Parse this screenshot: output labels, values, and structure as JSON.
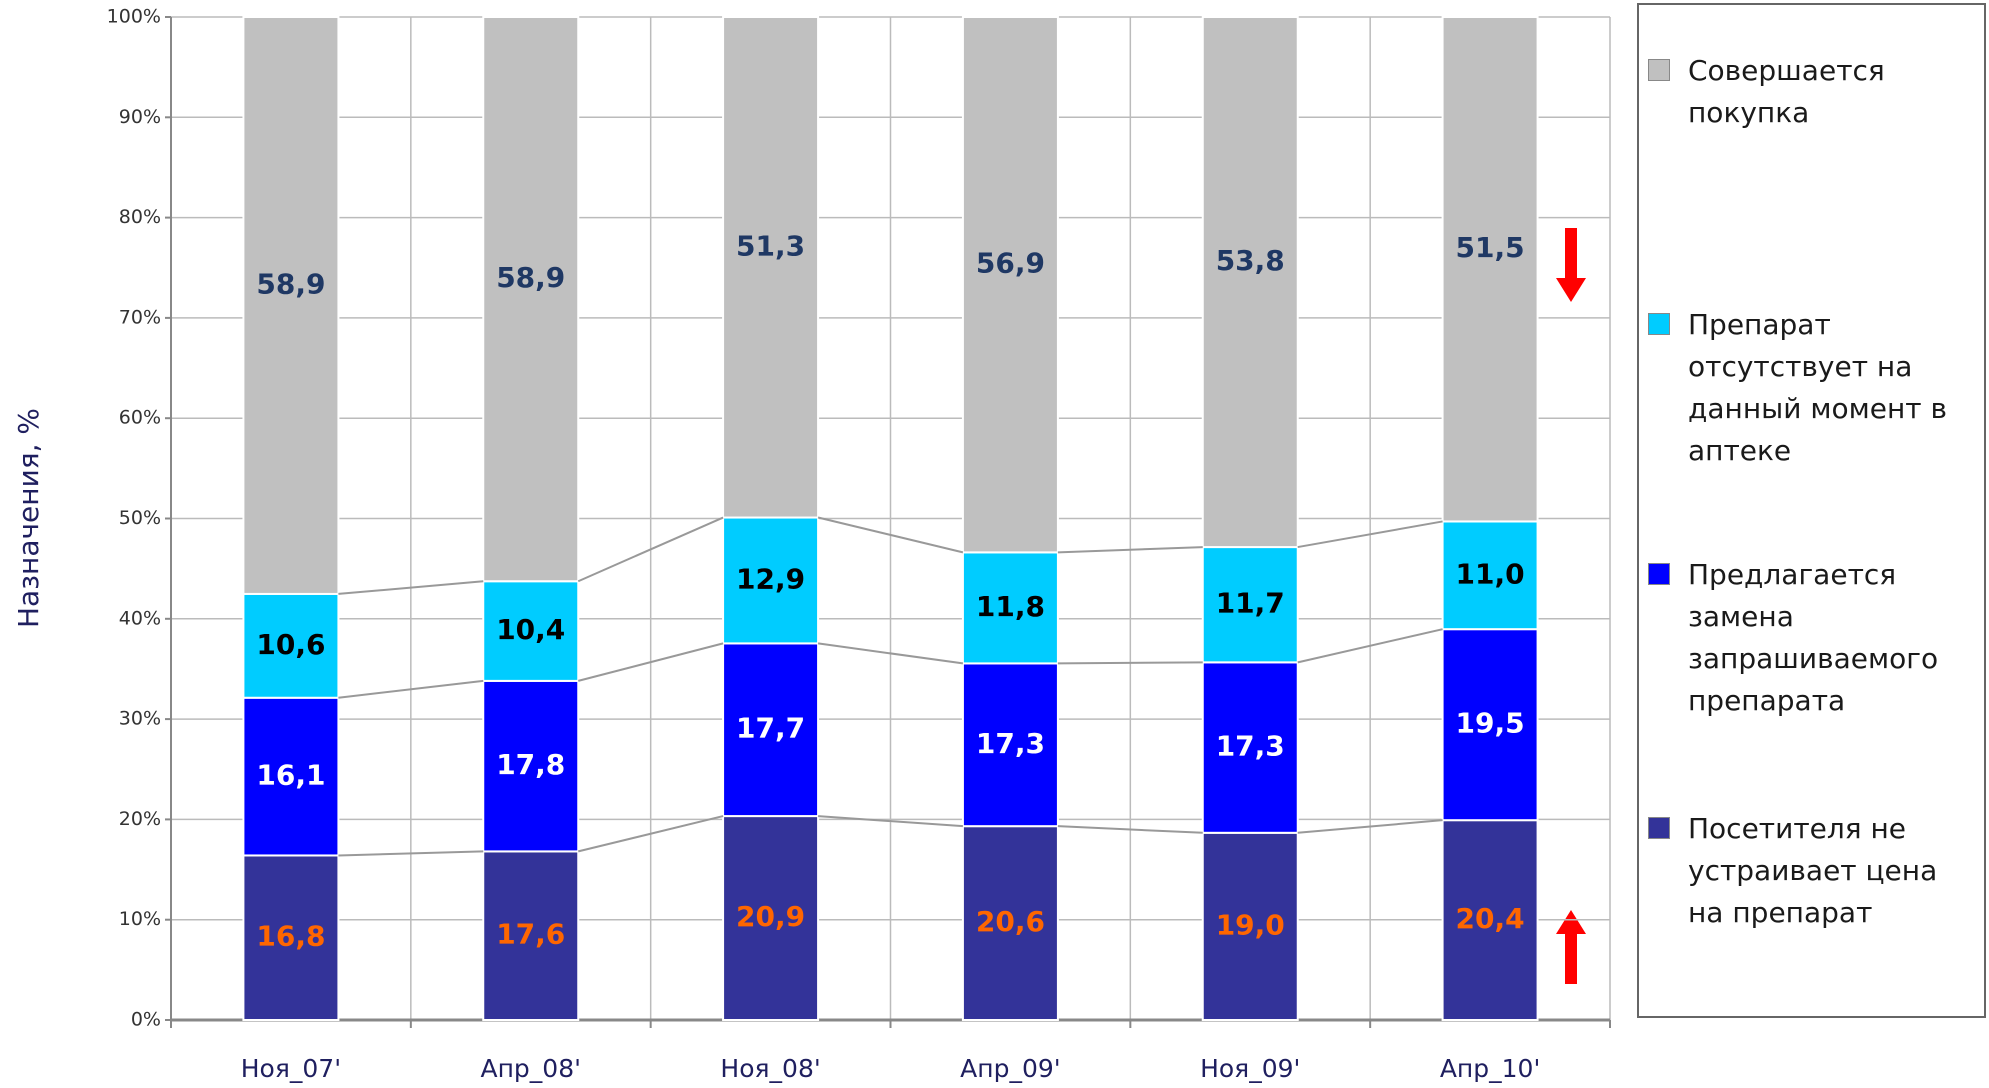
{
  "chart_data": {
    "type": "bar",
    "stack": "percent",
    "y_label": "Назначения, %",
    "categories": [
      "Ноя_07'",
      "Апр_08'",
      "Ноя_08'",
      "Апр_09'",
      "Ноя_09'",
      "Апр_10'"
    ],
    "series": [
      {
        "name": "Посетителя не устраивает цена на препарат",
        "color": "#333399",
        "label_color": "#ff6600",
        "values": [
          16.8,
          17.6,
          20.9,
          20.6,
          19.0,
          20.4
        ],
        "value_labels": [
          "16,8",
          "17,6",
          "20,9",
          "20,6",
          "19,0",
          "20,4"
        ]
      },
      {
        "name": "Предлагается замена запрашиваемого препарата",
        "color": "#0000ff",
        "label_color": "#ffffff",
        "values": [
          16.1,
          17.8,
          17.7,
          17.3,
          17.3,
          19.5
        ],
        "value_labels": [
          "16,1",
          "17,8",
          "17,7",
          "17,3",
          "17,3",
          "19,5"
        ]
      },
      {
        "name": "Препарат отсутствует на данный момент в аптеке",
        "color": "#00ccff",
        "label_color": "#000000",
        "values": [
          10.6,
          10.4,
          12.9,
          11.8,
          11.7,
          11.0
        ],
        "value_labels": [
          "10,6",
          "10,4",
          "12,9",
          "11,8",
          "11,7",
          "11,0"
        ]
      },
      {
        "name": "Совершается покупка",
        "color": "#c0c0c0",
        "label_color": "#1f3864",
        "values": [
          58.9,
          58.9,
          51.3,
          56.9,
          53.8,
          51.5
        ],
        "value_labels": [
          "58,9",
          "58,9",
          "51,3",
          "56,9",
          "53,8",
          "51,5"
        ]
      }
    ],
    "ylim": [
      0,
      100
    ],
    "yticks": [
      {
        "value": 0,
        "label": "0%"
      },
      {
        "value": 10,
        "label": "10%"
      },
      {
        "value": 20,
        "label": "20%"
      },
      {
        "value": 30,
        "label": "30%"
      },
      {
        "value": 40,
        "label": "40%"
      },
      {
        "value": 50,
        "label": "50%"
      },
      {
        "value": 60,
        "label": "60%"
      },
      {
        "value": 70,
        "label": "70%"
      },
      {
        "value": 80,
        "label": "80%"
      },
      {
        "value": 90,
        "label": "90%"
      },
      {
        "value": 100,
        "label": "100%"
      }
    ],
    "grid": true
  }
}
